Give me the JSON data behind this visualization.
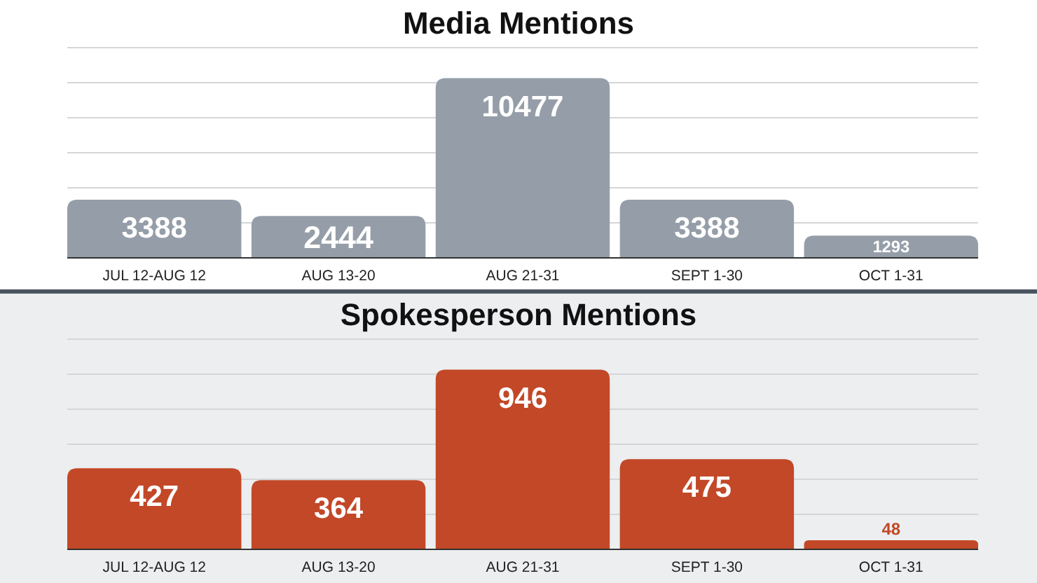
{
  "chart_data": [
    {
      "type": "bar",
      "title": "Media Mentions",
      "categories": [
        "JUL 12-AUG 12",
        "AUG 13-20",
        "AUG 21-31",
        "SEPT 1-30",
        "OCT 1-31"
      ],
      "values": [
        3388,
        2444,
        10477,
        3388,
        1293
      ],
      "color": "#959ea8",
      "data_labels": true,
      "grid": "y"
    },
    {
      "type": "bar",
      "title": "Spokesperson Mentions",
      "categories": [
        "JUL 12-AUG 12",
        "AUG 13-20",
        "AUG 21-31",
        "SEPT 1-30",
        "OCT 1-31"
      ],
      "values": [
        427,
        364,
        946,
        475,
        48
      ],
      "color": "#c24827",
      "data_labels": true,
      "grid": "y"
    }
  ]
}
